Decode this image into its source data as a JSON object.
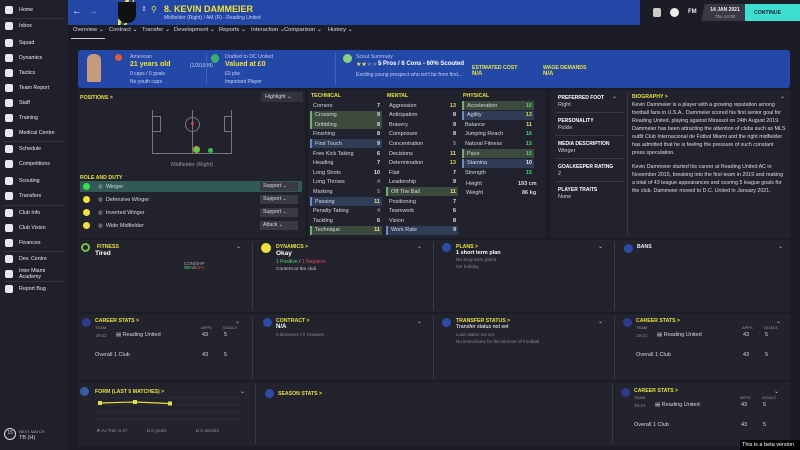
{
  "sidebar": {
    "items": [
      "Home",
      "Inbox",
      "Squad",
      "Dynamics",
      "Tactics",
      "Team Report",
      "Staff",
      "Training",
      "Medical Centre",
      "Schedule",
      "Competitions",
      "Scouting",
      "Transfers",
      "Club Info",
      "Club Vision",
      "Finances",
      "Dev. Centre",
      "Inter Miami Academy",
      "Report Bug"
    ],
    "next_match_label": "NEXT MATCH",
    "next_match_value": "TB (H)",
    "next_match_days": "15"
  },
  "header": {
    "title": "8. KEVIN DAMMEIER",
    "subtitle": "Midfielder (Right) / AM (R) - Reading United",
    "date": "14 JAN 2021",
    "time": "Thu 14:00",
    "fm": "FM",
    "continue": "CONTINUE"
  },
  "tabs": [
    "Overview",
    "Contract",
    "Transfer",
    "Development",
    "Reports",
    "Interaction",
    "Comparison",
    "History"
  ],
  "band": {
    "nationality": "American",
    "age": "21 years old",
    "dob": "(1/3/1999)",
    "caps": "0 caps / 0 goals",
    "youth_caps": "No youth caps",
    "drafted": "Drafted to DC United",
    "value": "Valued at £0",
    "wage": "£0 p/w",
    "status": "Important Player",
    "scout_label": "Scout Summary",
    "scout_summary": "5 Pros / 6 Cons - 60% Scouted",
    "scout_desc": "Exciting young prospect who isn't far from first...",
    "stars": 2,
    "est_cost_label": "ESTIMATED COST",
    "est_cost": "N/A",
    "wage_demands_label": "WAGE DEMANDS",
    "wage_demands": "N/A"
  },
  "positions": {
    "title": "POSITIONS >",
    "highlight": "Highlight",
    "position_label": "Midfielder (Right)",
    "role_title": "ROLE AND DUTY",
    "roles": [
      {
        "name": "Winger",
        "duty": "Support"
      },
      {
        "name": "Defensive Winger",
        "duty": "Support"
      },
      {
        "name": "Inverted Winger",
        "duty": "Support"
      },
      {
        "name": "Wide Midfielder",
        "duty": "Attack"
      }
    ]
  },
  "attributes": {
    "technical": {
      "title": "TECHNICAL",
      "items": [
        [
          "Corners",
          7,
          ""
        ],
        [
          "Crossing",
          9,
          "g"
        ],
        [
          "Dribbling",
          8,
          "g"
        ],
        [
          "Finishing",
          8,
          ""
        ],
        [
          "First Touch",
          9,
          "b"
        ],
        [
          "Free Kick Taking",
          6,
          ""
        ],
        [
          "Heading",
          7,
          ""
        ],
        [
          "Long Shots",
          10,
          ""
        ],
        [
          "Long Throws",
          4,
          ""
        ],
        [
          "Marking",
          5,
          ""
        ],
        [
          "Passing",
          11,
          "b"
        ],
        [
          "Penalty Taking",
          4,
          ""
        ],
        [
          "Tackling",
          6,
          ""
        ],
        [
          "Technique",
          11,
          "g"
        ]
      ]
    },
    "mental": {
      "title": "MENTAL",
      "items": [
        [
          "Aggression",
          13,
          ""
        ],
        [
          "Anticipation",
          8,
          ""
        ],
        [
          "Bravery",
          9,
          ""
        ],
        [
          "Composure",
          8,
          ""
        ],
        [
          "Concentration",
          5,
          ""
        ],
        [
          "Decisions",
          11,
          ""
        ],
        [
          "Determination",
          13,
          ""
        ],
        [
          "Flair",
          7,
          ""
        ],
        [
          "Leadership",
          9,
          ""
        ],
        [
          "Off The Ball",
          11,
          "g"
        ],
        [
          "Positioning",
          7,
          ""
        ],
        [
          "Teamwork",
          6,
          ""
        ],
        [
          "Vision",
          8,
          ""
        ],
        [
          "Work Rate",
          9,
          "b"
        ]
      ]
    },
    "physical": {
      "title": "PHYSICAL",
      "items": [
        [
          "Acceleration",
          16,
          "g"
        ],
        [
          "Agility",
          13,
          "b"
        ],
        [
          "Balance",
          11,
          ""
        ],
        [
          "Jumping Reach",
          16,
          ""
        ],
        [
          "Natural Fitness",
          15,
          ""
        ],
        [
          "Pace",
          15,
          "g"
        ],
        [
          "Stamina",
          10,
          "b"
        ],
        [
          "Strength",
          15,
          ""
        ]
      ],
      "height_label": "Height",
      "height": "193 cm",
      "weight_label": "Weight",
      "weight": "86 kg"
    }
  },
  "info": [
    {
      "label": "PREFERRED FOOT",
      "value": "Right"
    },
    {
      "label": "PERSONALITY",
      "value": "Fickle"
    },
    {
      "label": "MEDIA DESCRIPTION",
      "value": "Winger"
    },
    {
      "label": "GOALKEEPER RATING",
      "value": "2"
    },
    {
      "label": "PLAYER TRAITS",
      "value": "None"
    }
  ],
  "biography": {
    "title": "BIOGRAPHY >",
    "p1": "Kevin Dammeier is a player with a growing reputation among football fans in U.S.A.. Dammeier scored his first senior goal for Reading United, playing against Mirassol on 24th August 2019. Dammeier has been attracting the attention of clubs such as MLS outfit Club Internacional de Fútbol Miami and the right midfielder has admitted that he is feeling the pressure of such constant press speculation.",
    "p2": "Kevin Dammeier started his career at Reading United AC in November 2015, breaking into the first-team in 2019 and making a total of 43 league appearances and scoring 5 league goals for the club. Dammeier moved to D.C. United in January 2021."
  },
  "fitness": {
    "title": "FITNESS",
    "value": "Tired",
    "cond_label": "CON/SHP",
    "cond": "99%",
    "sharp": "63%"
  },
  "dynamics": {
    "title": "DYNAMICS >",
    "value": "Okay",
    "positive": "1 Positive",
    "sep": "/",
    "negative": "1 Negative",
    "note": "Content at the club"
  },
  "plans": {
    "title": "PLANS >",
    "value": "1 short term plan",
    "l1": "No long term plans",
    "l2": "On holiday"
  },
  "bans": {
    "title": "BANS"
  },
  "career": {
    "title": "CAREER STATS >",
    "team_h": "TEAM",
    "apps_h": "APPS",
    "goals_h": "GOALS",
    "season": "19-21",
    "club": "Reading United",
    "apps": "43",
    "goals": "5",
    "overall": "Overall  1 Club",
    "o_apps": "43",
    "o_goals": "5"
  },
  "contract": {
    "title": "CONTRACT >",
    "value": "N/A",
    "note": "0 Bonuses / 0 Clauses"
  },
  "transfer": {
    "title": "TRANSFER STATUS >",
    "value": "Transfer status not set",
    "l1": "Loan status not set",
    "l2": "No instructions for the Director of Football"
  },
  "form": {
    "title": "FORM (LAST 5 MATCHES) >",
    "avg": "Av Rat: 6.57",
    "goals": "0 goals",
    "assists": "0 assists"
  },
  "season": {
    "title": "SEASON STATS >"
  },
  "beta": "This is a beta version",
  "colors": {
    "header": "#2347a6",
    "accent": "#f2e13a",
    "continue": "#3de0d0"
  }
}
